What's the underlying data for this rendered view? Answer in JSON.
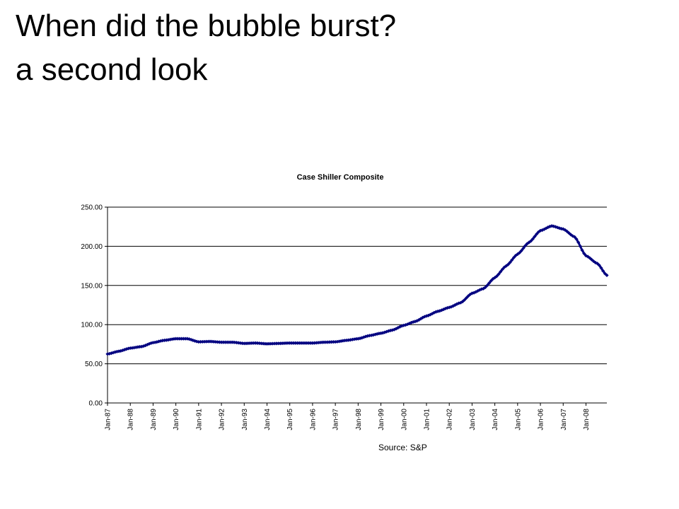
{
  "slide": {
    "title_line1": "When did the bubble burst?",
    "title_line2": "a second look",
    "source": "Source: S&P"
  },
  "chart_data": {
    "type": "line",
    "title": "Case Shiller Composite",
    "xlabel": "",
    "ylabel": "",
    "ylim": [
      0,
      250
    ],
    "yticks": [
      "0.00",
      "50.00",
      "100.00",
      "150.00",
      "200.00",
      "250.00"
    ],
    "grid": "horizontal",
    "legend": "none",
    "marker": "diamond",
    "series_color": "#000080",
    "categories": [
      "Jan-87",
      "Jan-88",
      "Jan-89",
      "Jan-90",
      "Jan-91",
      "Jan-92",
      "Jan-93",
      "Jan-94",
      "Jan-95",
      "Jan-96",
      "Jan-97",
      "Jan-98",
      "Jan-99",
      "Jan-00",
      "Jan-01",
      "Jan-02",
      "Jan-03",
      "Jan-04",
      "Jan-05",
      "Jan-06",
      "Jan-07",
      "Jan-08"
    ],
    "x_end": "Dec-08",
    "series": [
      {
        "name": "",
        "points": [
          [
            "Jan-87",
            62.5
          ],
          [
            "Jul-87",
            66
          ],
          [
            "Jan-88",
            70
          ],
          [
            "Jul-88",
            72
          ],
          [
            "Jan-89",
            77
          ],
          [
            "Jul-89",
            80
          ],
          [
            "Jan-90",
            82
          ],
          [
            "Jul-90",
            82
          ],
          [
            "Jan-91",
            78
          ],
          [
            "Jul-91",
            78.5
          ],
          [
            "Jan-92",
            77.5
          ],
          [
            "Jul-92",
            77.5
          ],
          [
            "Jan-93",
            76
          ],
          [
            "Jul-93",
            76.5
          ],
          [
            "Jan-94",
            75.5
          ],
          [
            "Jul-94",
            76
          ],
          [
            "Jan-95",
            76.5
          ],
          [
            "Jul-95",
            76.5
          ],
          [
            "Jan-96",
            76.5
          ],
          [
            "Jul-96",
            77.5
          ],
          [
            "Jan-97",
            78
          ],
          [
            "Jul-97",
            80
          ],
          [
            "Jan-98",
            82
          ],
          [
            "Jul-98",
            86
          ],
          [
            "Jan-99",
            89
          ],
          [
            "Jul-99",
            93
          ],
          [
            "Jan-00",
            99
          ],
          [
            "Jul-00",
            104
          ],
          [
            "Jan-01",
            111
          ],
          [
            "Jul-01",
            117
          ],
          [
            "Jan-02",
            122
          ],
          [
            "Jul-02",
            128
          ],
          [
            "Jan-03",
            140
          ],
          [
            "Jul-03",
            146
          ],
          [
            "Jan-04",
            160
          ],
          [
            "Jul-04",
            175
          ],
          [
            "Jan-05",
            190
          ],
          [
            "Jul-05",
            205
          ],
          [
            "Jan-06",
            220
          ],
          [
            "Jul-06",
            226
          ],
          [
            "Jan-07",
            222
          ],
          [
            "Jul-07",
            212
          ],
          [
            "Jan-08",
            188
          ],
          [
            "Jul-08",
            178
          ],
          [
            "Dec-08",
            163
          ]
        ]
      }
    ]
  }
}
